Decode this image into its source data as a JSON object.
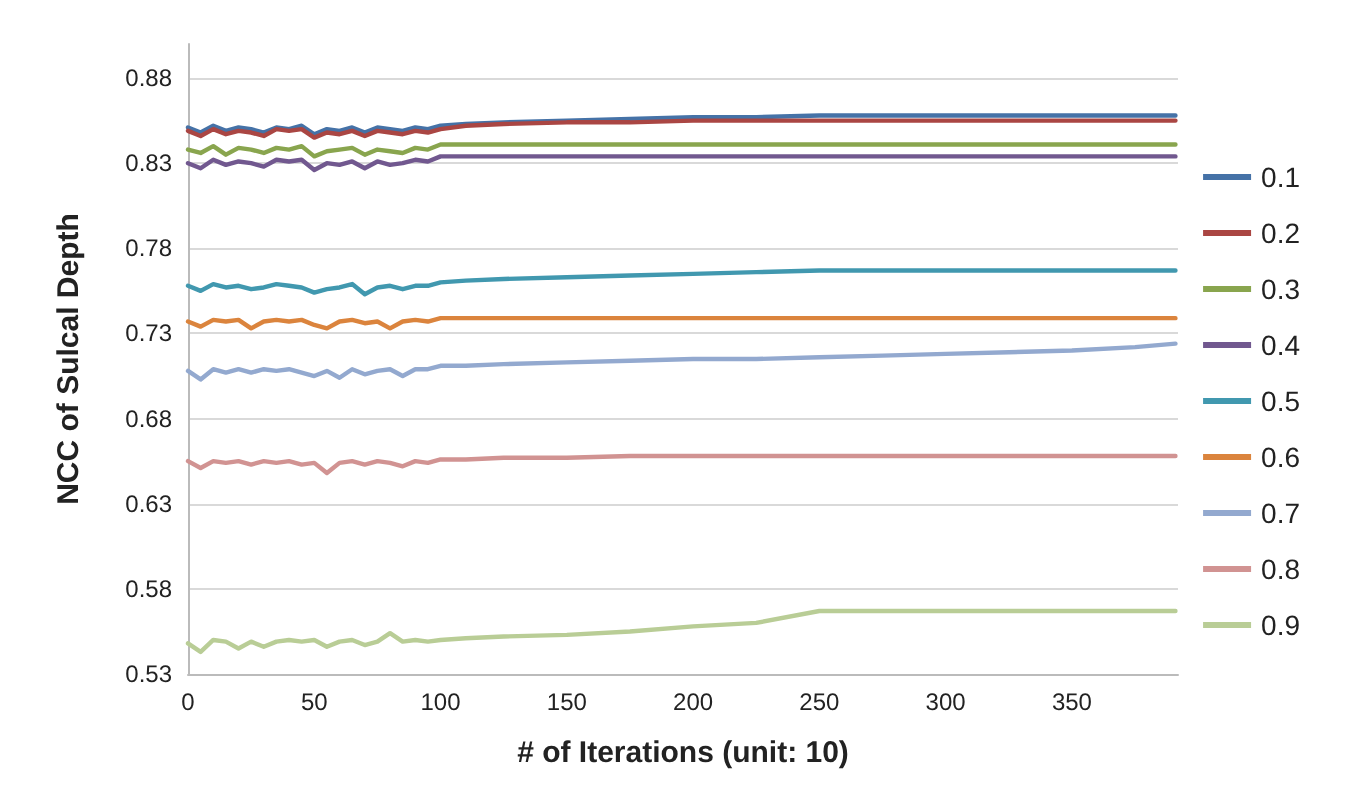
{
  "chart_data": {
    "type": "line",
    "xlabel": "# of Iterations (unit: 10)",
    "ylabel": "NCC of Sulcal Depth",
    "x": [
      0,
      5,
      10,
      15,
      20,
      25,
      30,
      35,
      40,
      45,
      50,
      55,
      60,
      65,
      70,
      75,
      80,
      85,
      90,
      95,
      100,
      110,
      125,
      150,
      175,
      200,
      225,
      250,
      275,
      300,
      325,
      350,
      375,
      391
    ],
    "xlim": [
      0,
      392
    ],
    "xticks": [
      0,
      50,
      100,
      150,
      200,
      250,
      300,
      350
    ],
    "ylim": [
      0.53,
      0.9
    ],
    "yticks": [
      0.53,
      0.58,
      0.63,
      0.68,
      0.73,
      0.78,
      0.83,
      0.88
    ],
    "grid": "y",
    "legend": "right",
    "marker": "none",
    "line_style": "solid",
    "series": [
      {
        "name": "0.1",
        "color": "#4572a7",
        "values": [
          0.851,
          0.848,
          0.852,
          0.849,
          0.851,
          0.85,
          0.848,
          0.851,
          0.85,
          0.852,
          0.847,
          0.85,
          0.849,
          0.851,
          0.848,
          0.851,
          0.85,
          0.849,
          0.851,
          0.85,
          0.852,
          0.853,
          0.854,
          0.855,
          0.856,
          0.857,
          0.857,
          0.858,
          0.858,
          0.858,
          0.858,
          0.858,
          0.858,
          0.858
        ]
      },
      {
        "name": "0.2",
        "color": "#aa4643",
        "values": [
          0.849,
          0.846,
          0.85,
          0.847,
          0.849,
          0.848,
          0.846,
          0.85,
          0.849,
          0.85,
          0.845,
          0.848,
          0.847,
          0.849,
          0.846,
          0.849,
          0.848,
          0.847,
          0.849,
          0.848,
          0.85,
          0.852,
          0.853,
          0.854,
          0.854,
          0.855,
          0.855,
          0.855,
          0.855,
          0.855,
          0.855,
          0.855,
          0.855,
          0.855
        ]
      },
      {
        "name": "0.3",
        "color": "#89a54e",
        "values": [
          0.838,
          0.836,
          0.84,
          0.835,
          0.839,
          0.838,
          0.836,
          0.839,
          0.838,
          0.84,
          0.834,
          0.837,
          0.838,
          0.839,
          0.835,
          0.838,
          0.837,
          0.836,
          0.839,
          0.838,
          0.841,
          0.841,
          0.841,
          0.841,
          0.841,
          0.841,
          0.841,
          0.841,
          0.841,
          0.841,
          0.841,
          0.841,
          0.841,
          0.841
        ]
      },
      {
        "name": "0.4",
        "color": "#71588f",
        "values": [
          0.83,
          0.827,
          0.832,
          0.829,
          0.831,
          0.83,
          0.828,
          0.832,
          0.831,
          0.832,
          0.826,
          0.83,
          0.829,
          0.831,
          0.827,
          0.831,
          0.829,
          0.83,
          0.832,
          0.831,
          0.834,
          0.834,
          0.834,
          0.834,
          0.834,
          0.834,
          0.834,
          0.834,
          0.834,
          0.834,
          0.834,
          0.834,
          0.834,
          0.834
        ]
      },
      {
        "name": "0.5",
        "color": "#4198af",
        "values": [
          0.758,
          0.755,
          0.759,
          0.757,
          0.758,
          0.756,
          0.757,
          0.759,
          0.758,
          0.757,
          0.754,
          0.756,
          0.757,
          0.759,
          0.753,
          0.757,
          0.758,
          0.756,
          0.758,
          0.758,
          0.76,
          0.761,
          0.762,
          0.763,
          0.764,
          0.765,
          0.766,
          0.767,
          0.767,
          0.767,
          0.767,
          0.767,
          0.767,
          0.767
        ]
      },
      {
        "name": "0.6",
        "color": "#db843d",
        "values": [
          0.737,
          0.734,
          0.738,
          0.737,
          0.738,
          0.733,
          0.737,
          0.738,
          0.737,
          0.738,
          0.735,
          0.733,
          0.737,
          0.738,
          0.736,
          0.737,
          0.733,
          0.737,
          0.738,
          0.737,
          0.739,
          0.739,
          0.739,
          0.739,
          0.739,
          0.739,
          0.739,
          0.739,
          0.739,
          0.739,
          0.739,
          0.739,
          0.739,
          0.739
        ]
      },
      {
        "name": "0.7",
        "color": "#93a9cf",
        "values": [
          0.708,
          0.703,
          0.709,
          0.707,
          0.709,
          0.707,
          0.709,
          0.708,
          0.709,
          0.707,
          0.705,
          0.708,
          0.704,
          0.709,
          0.706,
          0.708,
          0.709,
          0.705,
          0.709,
          0.709,
          0.711,
          0.711,
          0.712,
          0.713,
          0.714,
          0.715,
          0.715,
          0.716,
          0.717,
          0.718,
          0.719,
          0.72,
          0.722,
          0.724
        ]
      },
      {
        "name": "0.8",
        "color": "#d19392",
        "values": [
          0.655,
          0.651,
          0.655,
          0.654,
          0.655,
          0.653,
          0.655,
          0.654,
          0.655,
          0.653,
          0.654,
          0.648,
          0.654,
          0.655,
          0.653,
          0.655,
          0.654,
          0.652,
          0.655,
          0.654,
          0.656,
          0.656,
          0.657,
          0.657,
          0.658,
          0.658,
          0.658,
          0.658,
          0.658,
          0.658,
          0.658,
          0.658,
          0.658,
          0.658
        ]
      },
      {
        "name": "0.9",
        "color": "#b9cd96",
        "values": [
          0.548,
          0.543,
          0.55,
          0.549,
          0.545,
          0.549,
          0.546,
          0.549,
          0.55,
          0.549,
          0.55,
          0.546,
          0.549,
          0.55,
          0.547,
          0.549,
          0.554,
          0.549,
          0.55,
          0.549,
          0.55,
          0.551,
          0.552,
          0.553,
          0.555,
          0.558,
          0.56,
          0.567,
          0.567,
          0.567,
          0.567,
          0.567,
          0.567,
          0.567
        ]
      }
    ]
  }
}
